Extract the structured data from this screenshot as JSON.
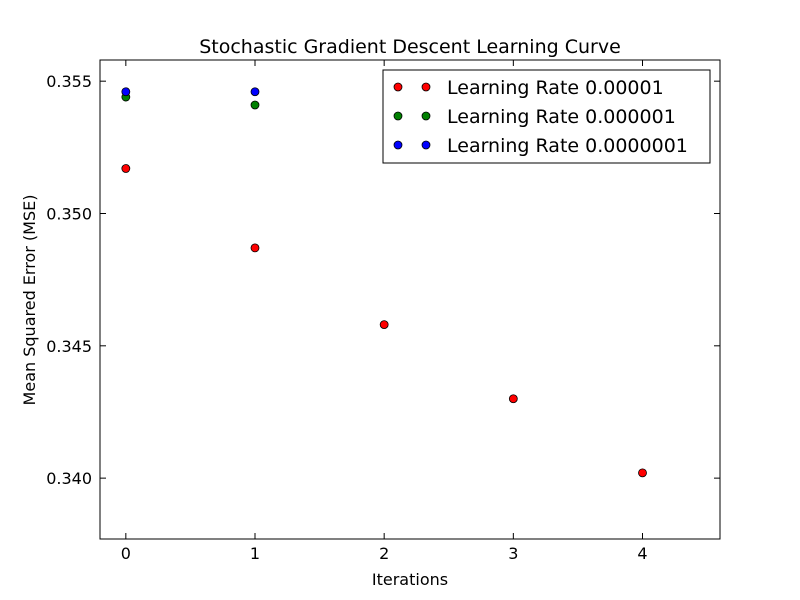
{
  "chart_data": {
    "type": "scatter",
    "title": "Stochastic Gradient Descent Learning Curve",
    "xlabel": "Iterations",
    "ylabel": "Mean Squared Error (MSE)",
    "xlim": [
      -0.2,
      4.6
    ],
    "ylim": [
      0.3377,
      0.3558
    ],
    "xticks": [
      0,
      1,
      2,
      3,
      4
    ],
    "yticks": [
      0.34,
      0.345,
      0.35,
      0.355
    ],
    "xtick_labels": [
      "0",
      "1",
      "2",
      "3",
      "4"
    ],
    "ytick_labels": [
      "0.340",
      "0.345",
      "0.350",
      "0.355"
    ],
    "grid": false,
    "legend_position": "top-right",
    "series": [
      {
        "name": "Learning Rate 0.00001",
        "color": "#ff0000",
        "x": [
          0,
          1,
          2,
          3,
          4
        ],
        "y": [
          0.3517,
          0.3487,
          0.3458,
          0.343,
          0.3402
        ]
      },
      {
        "name": "Learning Rate 0.000001",
        "color": "#008000",
        "x": [
          0,
          1
        ],
        "y": [
          0.3544,
          0.3541
        ]
      },
      {
        "name": "Learning Rate 0.0000001",
        "color": "#0000ff",
        "x": [
          0,
          1
        ],
        "y": [
          0.3546,
          0.3546
        ]
      }
    ]
  }
}
